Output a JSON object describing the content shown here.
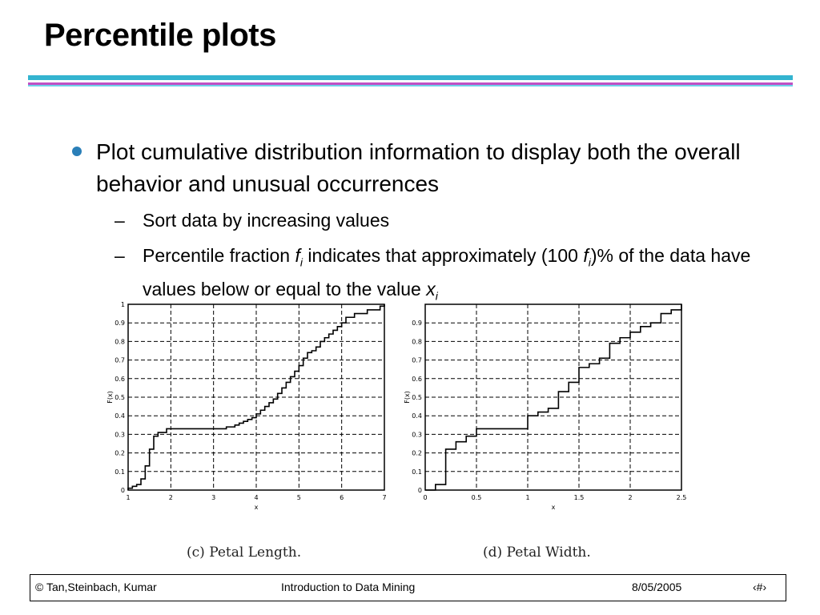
{
  "slide": {
    "title": "Percentile plots",
    "bullet": "Plot cumulative distribution information to display both the overall behavior and unusual occurrences",
    "sub1": "Sort data by increasing values",
    "sub2_a": "Percentile fraction ",
    "sub2_f": "f",
    "sub2_i": "i",
    "sub2_b": " indicates that approximately (100 ",
    "sub2_f2": "f",
    "sub2_i2": "i",
    "sub2_c": ")% of the data have values below or equal to the value ",
    "sub2_x": "x",
    "sub2_i3": "i"
  },
  "captions": {
    "c": "(c) Petal Length.",
    "d": "(d) Petal Width."
  },
  "footer": {
    "left": "© Tan,Steinbach, Kumar",
    "center": "Introduction to Data Mining",
    "date": "8/05/2005",
    "page": "‹#›"
  },
  "chart_data": [
    {
      "type": "line",
      "title": "",
      "xlabel": "x",
      "ylabel": "F(x)",
      "xlim": [
        1,
        7
      ],
      "ylim": [
        0,
        1
      ],
      "xticks": [
        "1",
        "2",
        "3",
        "4",
        "5",
        "6",
        "7"
      ],
      "yticks": [
        "0",
        "0.1",
        "0.2",
        "0.3",
        "0.4",
        "0.5",
        "0.6",
        "0.7",
        "0.8",
        "0.9",
        "1"
      ],
      "grid": true,
      "series": [
        {
          "x": [
            1.0,
            1.1,
            1.2,
            1.3,
            1.4,
            1.5,
            1.6,
            1.7,
            1.9,
            3.0,
            3.3,
            3.5,
            3.6,
            3.7,
            3.8,
            3.9,
            4.0,
            4.1,
            4.2,
            4.3,
            4.4,
            4.5,
            4.6,
            4.7,
            4.8,
            4.9,
            5.0,
            5.1,
            5.2,
            5.3,
            5.4,
            5.5,
            5.6,
            5.7,
            5.8,
            5.9,
            6.0,
            6.1,
            6.3,
            6.6,
            6.9,
            7.0
          ],
          "y": [
            0.01,
            0.02,
            0.03,
            0.06,
            0.13,
            0.22,
            0.29,
            0.31,
            0.33,
            0.33,
            0.34,
            0.35,
            0.36,
            0.37,
            0.38,
            0.39,
            0.41,
            0.43,
            0.45,
            0.47,
            0.49,
            0.52,
            0.55,
            0.58,
            0.61,
            0.64,
            0.67,
            0.71,
            0.74,
            0.75,
            0.77,
            0.8,
            0.82,
            0.84,
            0.86,
            0.88,
            0.9,
            0.93,
            0.95,
            0.97,
            0.99,
            1.0
          ]
        }
      ]
    },
    {
      "type": "line",
      "title": "",
      "xlabel": "x",
      "ylabel": "F(x)",
      "xlim": [
        0,
        2.5
      ],
      "ylim": [
        0,
        1
      ],
      "xticks": [
        "0",
        "0.5",
        "1",
        "1.5",
        "2",
        "2.5"
      ],
      "yticks": [
        "0",
        "0.1",
        "0.2",
        "0.3",
        "0.4",
        "0.5",
        "0.6",
        "0.7",
        "0.8",
        "0.9"
      ],
      "grid": true,
      "series": [
        {
          "x": [
            0.1,
            0.2,
            0.3,
            0.4,
            0.5,
            1.0,
            1.1,
            1.2,
            1.3,
            1.4,
            1.5,
            1.6,
            1.7,
            1.8,
            1.9,
            2.0,
            2.1,
            2.2,
            2.3,
            2.4,
            2.5
          ],
          "y": [
            0.03,
            0.22,
            0.26,
            0.29,
            0.33,
            0.4,
            0.42,
            0.44,
            0.53,
            0.58,
            0.66,
            0.68,
            0.71,
            0.79,
            0.82,
            0.85,
            0.88,
            0.9,
            0.95,
            0.97,
            1.0
          ]
        }
      ]
    }
  ]
}
